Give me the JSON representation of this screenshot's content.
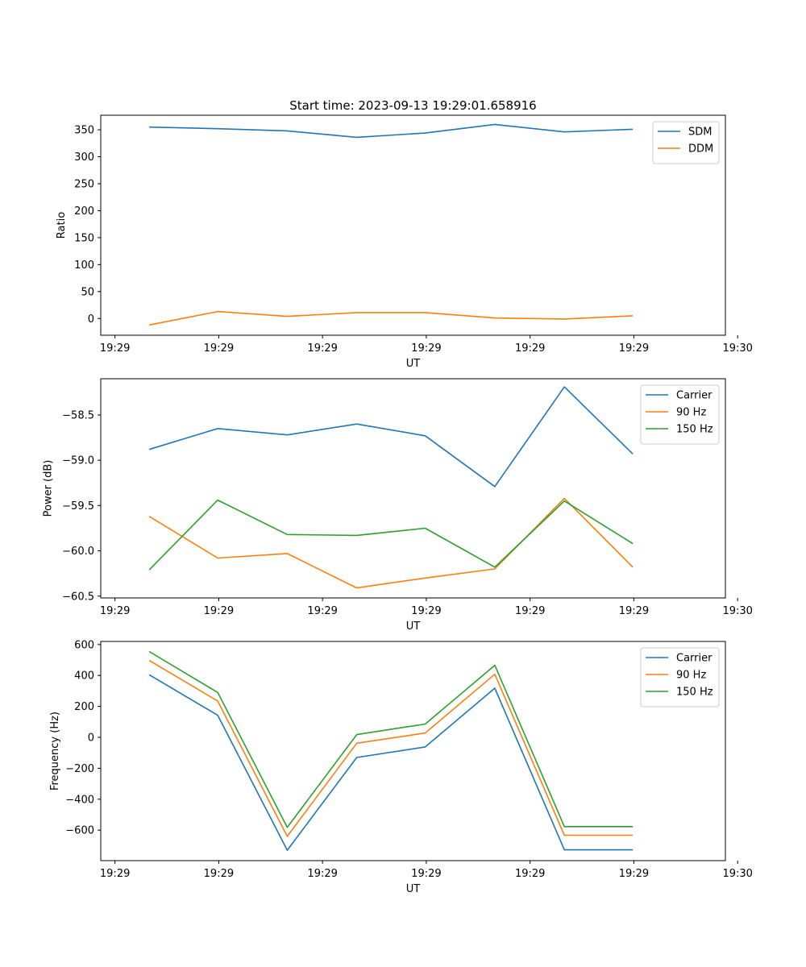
{
  "chart_data": [
    {
      "type": "line",
      "title": "Start time: 2023-09-13 19:29:01.658916",
      "xlabel": "UT",
      "ylabel": "Ratio",
      "x_tick_labels": [
        "19:29",
        "19:29",
        "19:29",
        "19:29",
        "19:29",
        "19:29",
        "19:30"
      ],
      "y_ticks": [
        0,
        50,
        100,
        150,
        200,
        250,
        300,
        350
      ],
      "y_tick_labels": [
        "0",
        "50",
        "100",
        "150",
        "200",
        "250",
        "300",
        "350"
      ],
      "ylim": [
        -31,
        377
      ],
      "xlim": [
        -0.137,
        5.882
      ],
      "x": [
        0.33,
        0.99,
        1.66,
        2.33,
        2.99,
        3.66,
        4.33,
        4.99
      ],
      "legend": "top-right",
      "series": [
        {
          "name": "SDM",
          "color": "#1f77b4",
          "values": [
            355,
            352,
            348,
            336,
            344,
            360,
            346,
            351
          ]
        },
        {
          "name": "DDM",
          "color": "#ff7f0e",
          "values": [
            -12,
            13,
            4,
            11,
            11,
            1,
            -1,
            5
          ]
        }
      ]
    },
    {
      "type": "line",
      "title": "",
      "xlabel": "UT",
      "ylabel": "Power (dB)",
      "x_tick_labels": [
        "19:29",
        "19:29",
        "19:29",
        "19:29",
        "19:29",
        "19:29",
        "19:30"
      ],
      "y_ticks": [
        -60.5,
        -60.0,
        -59.5,
        -59.0,
        -58.5
      ],
      "y_tick_labels": [
        "−60.5",
        "−60.0",
        "−59.5",
        "−59.0",
        "−58.5"
      ],
      "ylim": [
        -60.52,
        -58.1
      ],
      "xlim": [
        -0.137,
        5.882
      ],
      "x": [
        0.33,
        0.99,
        1.66,
        2.33,
        2.99,
        3.66,
        4.33,
        4.99
      ],
      "legend": "top-right",
      "series": [
        {
          "name": "Carrier",
          "color": "#1f77b4",
          "values": [
            -58.88,
            -58.65,
            -58.72,
            -58.6,
            -58.73,
            -59.29,
            -58.19,
            -58.93
          ]
        },
        {
          "name": "90 Hz",
          "color": "#ff7f0e",
          "values": [
            -59.62,
            -60.08,
            -60.03,
            -60.41,
            -60.3,
            -60.2,
            -59.42,
            -60.18
          ]
        },
        {
          "name": "150 Hz",
          "color": "#2ca02c",
          "values": [
            -60.21,
            -59.44,
            -59.82,
            -59.83,
            -59.75,
            -60.18,
            -59.45,
            -59.92
          ]
        }
      ]
    },
    {
      "type": "line",
      "title": "",
      "xlabel": "UT",
      "ylabel": "Frequency (Hz)",
      "x_tick_labels": [
        "19:29",
        "19:29",
        "19:29",
        "19:29",
        "19:29",
        "19:29",
        "19:30"
      ],
      "y_ticks": [
        -600,
        -400,
        -200,
        0,
        200,
        400,
        600
      ],
      "y_tick_labels": [
        "−600",
        "−400",
        "−200",
        "0",
        "200",
        "400",
        "600"
      ],
      "ylim": [
        -797,
        620
      ],
      "xlim": [
        -0.137,
        5.882
      ],
      "x": [
        0.33,
        0.99,
        1.66,
        2.33,
        2.99,
        3.66,
        4.33,
        4.99
      ],
      "legend": "top-right",
      "series": [
        {
          "name": "Carrier",
          "color": "#1f77b4",
          "values": [
            405,
            143,
            -730,
            -130,
            -62,
            318,
            -727,
            -727
          ]
        },
        {
          "name": "90 Hz",
          "color": "#ff7f0e",
          "values": [
            497,
            235,
            -640,
            -38,
            28,
            408,
            -633,
            -633
          ]
        },
        {
          "name": "150 Hz",
          "color": "#2ca02c",
          "values": [
            555,
            290,
            -582,
            18,
            86,
            466,
            -577,
            -577
          ]
        }
      ]
    }
  ]
}
